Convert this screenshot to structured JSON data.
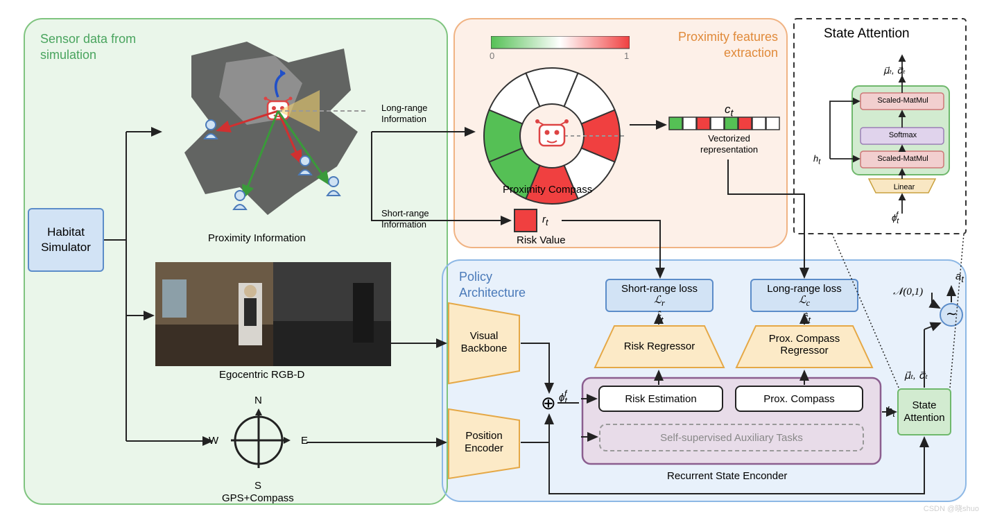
{
  "colors": {
    "green_panel_fill": "#eaf6ea",
    "green_panel_stroke": "#7fc47f",
    "orange_panel_fill": "#fdf0e8",
    "orange_panel_stroke": "#f0b383",
    "blue_panel_fill": "#e8f1fb",
    "blue_panel_stroke": "#8db8e5",
    "dashed_stroke": "#333333",
    "blue_box_fill": "#d2e3f5",
    "blue_box_stroke": "#5b8cc9",
    "orange_block_fill": "#fceac7",
    "orange_block_stroke": "#e5a846",
    "purple_fill": "#e8dce9",
    "purple_stroke": "#8b5e8f",
    "green_attn_fill": "#d2ebd0",
    "green_attn_stroke": "#6fb86c",
    "red_fill": "#f04040",
    "green_fill": "#55c055",
    "white_fill": "#ffffff",
    "gray": "#888888",
    "linear_fill": "#f9e7c3",
    "softmax_fill": "#e0d3ec",
    "matmul_fill": "#f2cfcf",
    "text": "#222222",
    "green_text": "#49a45e",
    "orange_text": "#e08a3a",
    "blue_text": "#4a7ab9"
  },
  "panels": {
    "sensor": {
      "label": "Sensor data from\nsimulation"
    },
    "proximity": {
      "label": "Proximity features\nextraction"
    },
    "policy": {
      "label": "Policy\nArchitecture"
    },
    "attention": {
      "label": "State Attention"
    }
  },
  "blocks": {
    "habitat": "Habitat\nSimulator",
    "visual_backbone": "Visual\nBackbone",
    "position_encoder": "Position\nEncoder",
    "risk_regressor": "Risk Regressor",
    "compass_regressor": "Prox. Compass\nRegressor",
    "risk_est": "Risk Estimation",
    "prox_compass": "Prox. Compass",
    "aux_tasks": "Self-supervised Auxiliary Tasks",
    "state_attn": "State\nAttention",
    "linear": "Linear",
    "softmax": "Softmax",
    "matmul": "Scaled-MatMul"
  },
  "labels": {
    "prox_info": "Proximity Information",
    "ego_rgbd": "Egocentric RGB-D",
    "gps": "GPS+Compass",
    "long_range": "Long-range\nInformation",
    "short_range": "Short-range\nInformation",
    "prox_compass": "Proximity Compass",
    "risk_value": "Risk Value",
    "vectorized": "Vectorized\nrepresentation",
    "short_loss": "Short-range loss",
    "long_loss": "Long-range loss",
    "recurrent": "Recurrent State Enconder",
    "ct": "c",
    "ct_sub": "t",
    "rt": "r",
    "rhat": "r̂",
    "chat": "ĉ",
    "ht": "h",
    "phi": "ϕ",
    "phi_sup": "f",
    "mu_sigma": "μ⃗ₜ, σ⃗ₜ",
    "at": "a",
    "noise": "𝒩(0,1)",
    "tilde": "∼",
    "Lr": "ℒ",
    "Lr_sub": "r",
    "Lc": "ℒ",
    "Lc_sub": "c",
    "oplus": "⊕",
    "zero": "0",
    "one": "1",
    "N": "N",
    "E": "E",
    "S": "S",
    "W": "W"
  },
  "compass_colors": [
    "#f04040",
    "#ffffff",
    "#f04040",
    "#55c055",
    "#55c055",
    "#ffffff",
    "#ffffff",
    "#ffffff"
  ],
  "vector_colors": [
    "#55c055",
    "#ffffff",
    "#f04040",
    "#ffffff",
    "#55c055",
    "#f04040",
    "#ffffff",
    "#ffffff"
  ],
  "watermark": "CSDN @晓shuo"
}
